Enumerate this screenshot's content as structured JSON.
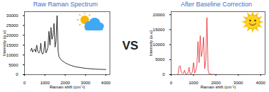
{
  "annotation": "VS",
  "chart_data": [
    {
      "type": "line",
      "title": "Raw Raman Spectrum",
      "x_label": "Raman shift (cm⁻¹)",
      "y_label": "Intensity (a.u)",
      "x": [
        300,
        350,
        400,
        450,
        500,
        550,
        600,
        650,
        700,
        750,
        800,
        850,
        900,
        950,
        1000,
        1050,
        1100,
        1150,
        1200,
        1250,
        1300,
        1350,
        1400,
        1450,
        1500,
        1550,
        1600,
        1650,
        1700,
        1800,
        2000,
        2200,
        2500,
        3000,
        3500,
        4000
      ],
      "series": [
        {
          "color": "#000000",
          "values": [
            12000,
            13500,
            11500,
            12500,
            13000,
            11500,
            15000,
            12000,
            11000,
            11500,
            16000,
            11000,
            10500,
            12000,
            17000,
            11000,
            12000,
            14000,
            22000,
            15000,
            24000,
            18000,
            20000,
            26000,
            14000,
            17000,
            30000,
            12000,
            9000,
            7500,
            6000,
            5000,
            4000,
            3200,
            2800,
            2600
          ]
        }
      ],
      "xlim": [
        0,
        4200
      ],
      "xticks": [
        0,
        1000,
        2000,
        3000,
        4000
      ],
      "ylim": [
        0,
        32000
      ],
      "yticks": [
        0,
        5000,
        10000,
        15000,
        20000,
        25000,
        30000
      ]
    },
    {
      "type": "line",
      "title": "After Baseline Correction",
      "x_label": "Raman shift (cm⁻¹)",
      "y_label": "Intensity (a.u)",
      "x": [
        300,
        350,
        400,
        450,
        500,
        550,
        600,
        650,
        700,
        750,
        800,
        850,
        900,
        950,
        1000,
        1050,
        1100,
        1150,
        1200,
        1250,
        1300,
        1350,
        1400,
        1450,
        1500,
        1550,
        1600,
        1650,
        1700,
        1800,
        2000,
        2200,
        2500,
        3000,
        3500,
        4000
      ],
      "series": [
        {
          "color": "#e8222a",
          "values": [
            0,
            2500,
            3000,
            800,
            500,
            400,
            1500,
            300,
            200,
            500,
            2500,
            300,
            200,
            1000,
            4000,
            500,
            1500,
            3000,
            11000,
            4000,
            13000,
            6000,
            8000,
            12500,
            2000,
            5000,
            19000,
            1500,
            300,
            100,
            50,
            30,
            20,
            10,
            0,
            0
          ]
        }
      ],
      "xlim": [
        0,
        4200
      ],
      "xticks": [
        0,
        1000,
        2000,
        3000,
        4000
      ],
      "ylim": [
        0,
        21000
      ],
      "yticks": [
        0,
        5000,
        10000,
        15000,
        20000
      ]
    }
  ]
}
